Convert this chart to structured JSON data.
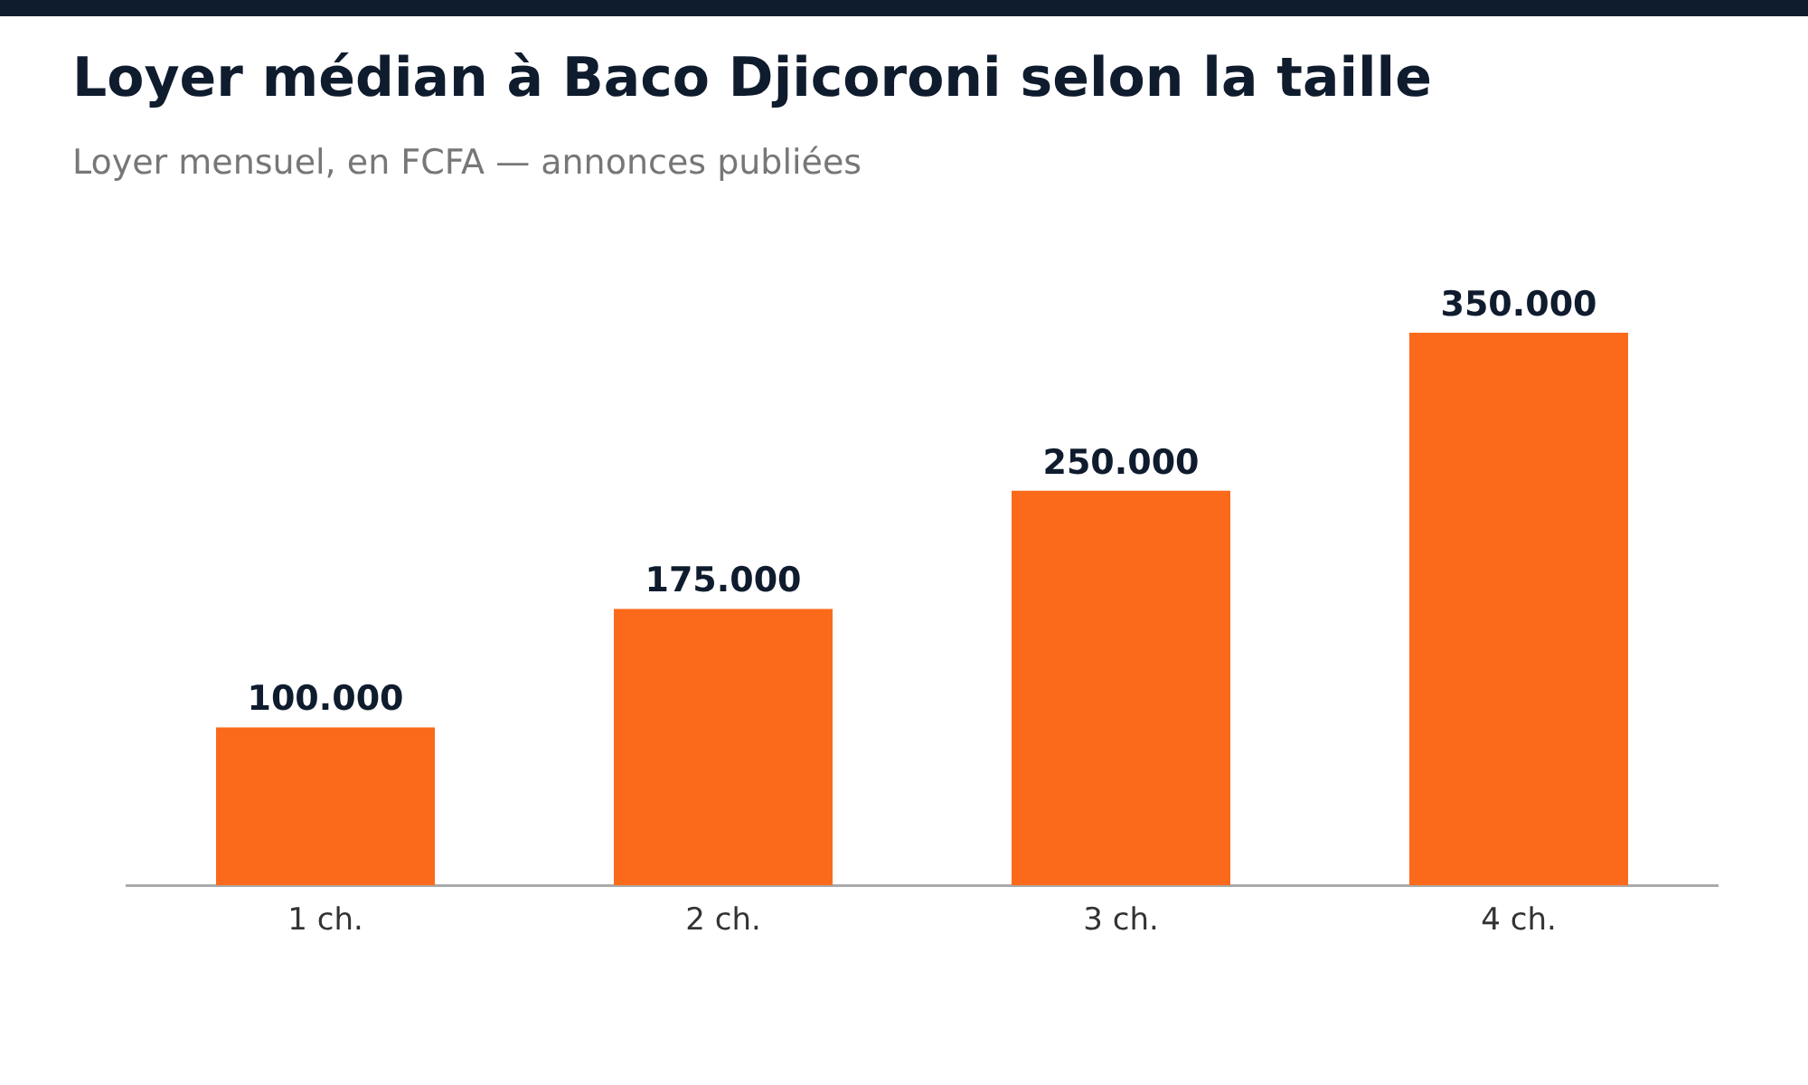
{
  "chart_data": {
    "type": "bar",
    "title": "Loyer médian à Baco Djicoroni selon la taille",
    "subtitle": "Loyer mensuel, en FCFA — annonces publiées",
    "categories": [
      "1 ch.",
      "2 ch.",
      "3 ch.",
      "4 ch."
    ],
    "values": [
      100000,
      175000,
      250000,
      350000
    ],
    "value_labels": [
      "100.000",
      "175.000",
      "250.000",
      "350.000"
    ],
    "color": "#fb6a1b",
    "tick_labels": "x",
    "grid": false,
    "legend": false
  }
}
